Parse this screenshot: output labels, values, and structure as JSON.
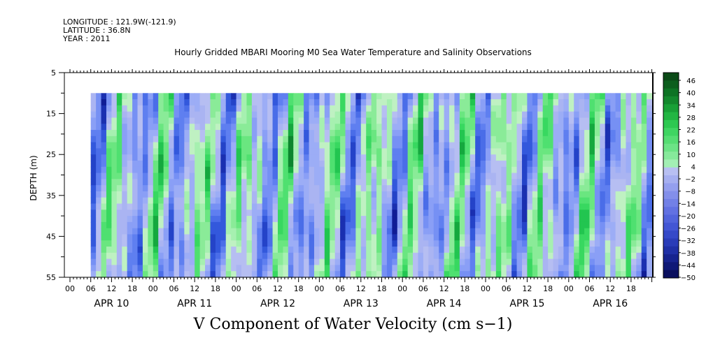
{
  "header": {
    "longitude": "LONGITUDE : 121.9W(-121.9)",
    "latitude": "LATITUDE : 36.8N",
    "year": "YEAR : 2011"
  },
  "chart_data": {
    "type": "heatmap",
    "title": "Hourly Gridded MBARI Mooring M0 Sea Water Temperature and Salinity Observations",
    "xlabel": "V Component of Water Velocity (cm s−1)",
    "ylabel": "DEPTH (m)",
    "y_axis": {
      "range": [
        5,
        55
      ],
      "inverted": true,
      "ticks": [
        5,
        15,
        25,
        35,
        45,
        55
      ]
    },
    "x_axis": {
      "hour_ticks": [
        "00",
        "06",
        "12",
        "18"
      ],
      "day_labels": [
        "APR 10",
        "APR 11",
        "APR 12",
        "APR 13",
        "APR 14",
        "APR 15",
        "APR 16"
      ],
      "data_start": "APR 10 06",
      "data_end": "APR 16 23"
    },
    "data_depth_range": [
      10,
      55
    ],
    "colorbar": {
      "labels": [
        "46",
        "40",
        "34",
        "28",
        "22",
        "16",
        "10",
        "4",
        "−2",
        "−8",
        "−14",
        "−20",
        "−26",
        "−32",
        "−38",
        "−44",
        "−50"
      ],
      "range": [
        -50,
        50
      ]
    },
    "colors": {
      "strong_positive": "#0b5d1e",
      "positive": "#33e06b",
      "weak_positive": "#a6f0b0",
      "weak_negative": "#aab4f2",
      "negative": "#4f6ef0",
      "strong_negative": "#0a0f7a"
    }
  }
}
